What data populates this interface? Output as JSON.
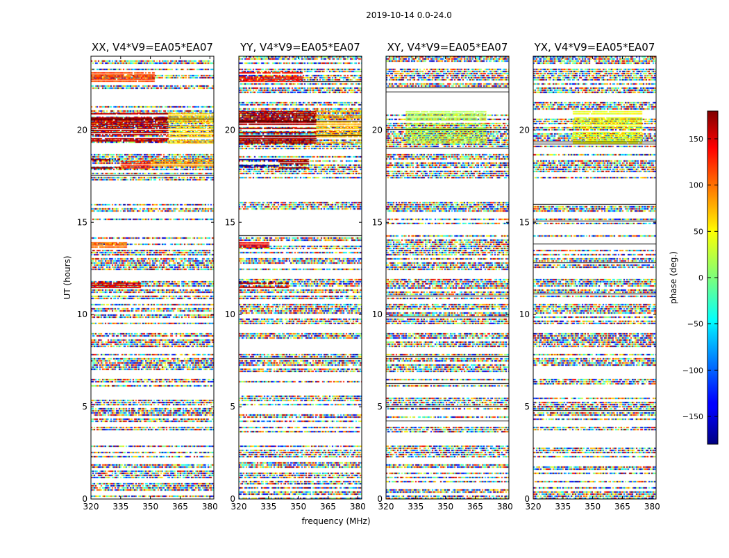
{
  "figure_title": "2019-10-14 0.0-24.0",
  "chart_data": {
    "type": "heatmap",
    "title": "2019-10-14 0.0-24.0",
    "xlabel": "frequency (MHz)",
    "ylabel": "UT (hours)",
    "xlim": [
      320,
      382
    ],
    "ylim": [
      0,
      24
    ],
    "x_ticks": [
      {
        "value": 320,
        "label": "320"
      },
      {
        "value": 335,
        "label": "335"
      },
      {
        "value": 350,
        "label": "350"
      },
      {
        "value": 365,
        "label": "365"
      },
      {
        "value": 380,
        "label": "380"
      }
    ],
    "y_ticks": [
      {
        "value": 0,
        "label": "0"
      },
      {
        "value": 5,
        "label": "5"
      },
      {
        "value": 10,
        "label": "10"
      },
      {
        "value": 15,
        "label": "15"
      },
      {
        "value": 20,
        "label": "20"
      }
    ],
    "colorbar": {
      "label": "phase (deg.)",
      "range": [
        -180,
        180
      ],
      "colormap": "jet",
      "ticks": [
        {
          "value": 150,
          "label": "150"
        },
        {
          "value": 100,
          "label": "100"
        },
        {
          "value": 50,
          "label": "50"
        },
        {
          "value": 0,
          "label": "0"
        },
        {
          "value": -50,
          "label": "−50"
        },
        {
          "value": -100,
          "label": "−100"
        },
        {
          "value": -150,
          "label": "−150"
        }
      ]
    },
    "panels": [
      {
        "title": "XX, V4*V9=EA05*EA07",
        "coherent_bands": [
          {
            "t0": 19.3,
            "t1": 21.0,
            "f0": 320,
            "f1": 359,
            "phase": 160
          },
          {
            "t0": 19.3,
            "t1": 21.0,
            "f0": 359,
            "f1": 382,
            "phase": 60
          },
          {
            "t0": 17.9,
            "t1": 18.4,
            "f0": 320,
            "f1": 335,
            "phase": 178
          },
          {
            "t0": 17.9,
            "t1": 18.4,
            "f0": 335,
            "f1": 350,
            "phase": 120
          },
          {
            "t0": 17.9,
            "t1": 18.4,
            "f0": 350,
            "f1": 382,
            "phase": 80
          },
          {
            "t0": 22.6,
            "t1": 23.1,
            "f0": 320,
            "f1": 352,
            "phase": 110
          },
          {
            "t0": 13.6,
            "t1": 13.9,
            "f0": 320,
            "f1": 338,
            "phase": 95
          },
          {
            "t0": 11.4,
            "t1": 11.7,
            "f0": 320,
            "f1": 345,
            "phase": 150
          }
        ]
      },
      {
        "title": "YY, V4*V9=EA05*EA07",
        "coherent_bands": [
          {
            "t0": 19.3,
            "t1": 21.0,
            "f0": 320,
            "f1": 359,
            "phase": 165
          },
          {
            "t0": 19.3,
            "t1": 21.0,
            "f0": 359,
            "f1": 382,
            "phase": 70
          },
          {
            "t0": 17.9,
            "t1": 18.4,
            "f0": 320,
            "f1": 340,
            "phase": -170
          },
          {
            "t0": 17.9,
            "t1": 18.4,
            "f0": 340,
            "f1": 355,
            "phase": 170
          },
          {
            "t0": 22.6,
            "t1": 23.1,
            "f0": 320,
            "f1": 352,
            "phase": 130
          },
          {
            "t0": 13.6,
            "t1": 13.9,
            "f0": 320,
            "f1": 335,
            "phase": 140
          },
          {
            "t0": 11.4,
            "t1": 11.7,
            "f0": 320,
            "f1": 345,
            "phase": 160
          }
        ]
      },
      {
        "title": "XY, V4*V9=EA05*EA07",
        "coherent_bands": [
          {
            "t0": 19.3,
            "t1": 21.0,
            "f0": 330,
            "f1": 370,
            "phase": 20
          }
        ]
      },
      {
        "title": "YX, V4*V9=EA05*EA07",
        "coherent_bands": [
          {
            "t0": 19.3,
            "t1": 21.0,
            "f0": 340,
            "f1": 375,
            "phase": 40
          }
        ]
      }
    ],
    "flagged_gaps_ut_hours": [
      [
        16.2,
        17.3
      ],
      [
        14.4,
        14.9
      ],
      [
        9.0,
        9.5
      ],
      [
        7.9,
        8.3
      ],
      [
        3.0,
        3.6
      ],
      [
        18.7,
        19.0
      ],
      [
        21.6,
        22.0
      ],
      [
        12.0,
        12.4
      ],
      [
        10.6,
        10.9
      ],
      [
        5.7,
        6.1
      ],
      [
        2.0,
        2.3
      ],
      [
        4.0,
        4.2
      ],
      [
        1.0,
        1.2
      ],
      [
        15.3,
        15.6
      ],
      [
        6.6,
        6.9
      ],
      [
        23.4,
        23.6
      ]
    ]
  }
}
